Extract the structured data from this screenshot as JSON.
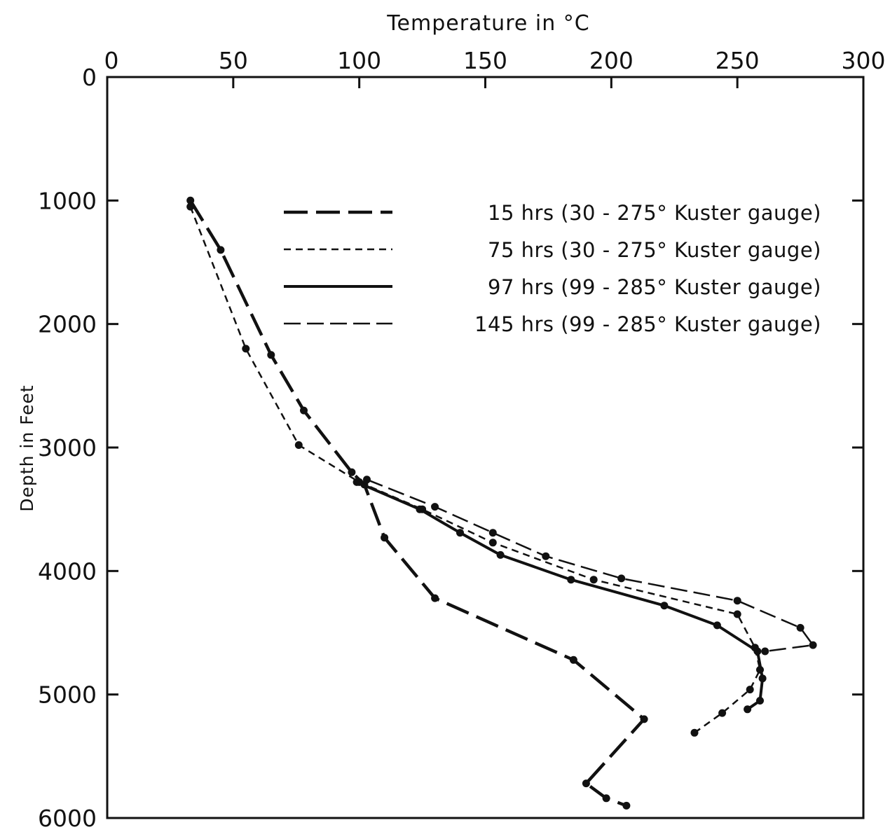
{
  "chart_data": {
    "type": "line",
    "x_axis": {
      "label": "Temperature in °C",
      "position": "top",
      "range": [
        0,
        300
      ],
      "ticks": [
        0,
        50,
        100,
        150,
        200,
        250,
        300
      ],
      "tick_labels": [
        "0",
        "50",
        "100",
        "150",
        "200",
        "250",
        "300"
      ]
    },
    "y_axis": {
      "label": "Depth in Feet",
      "inverted": true,
      "range": [
        0,
        6000
      ],
      "ticks": [
        0,
        1000,
        2000,
        3000,
        4000,
        5000,
        6000
      ],
      "tick_labels": [
        "0",
        "1000",
        "2000",
        "3000",
        "4000",
        "5000",
        "6000"
      ]
    },
    "grid": false,
    "legend_position": "top-right",
    "series": [
      {
        "name": "15 hrs (30 - 275° Kuster gauge)",
        "style": "long-dash-heavy",
        "points": [
          {
            "temp": 33,
            "depth": 1000
          },
          {
            "temp": 45,
            "depth": 1400
          },
          {
            "temp": 65,
            "depth": 2250
          },
          {
            "temp": 78,
            "depth": 2700
          },
          {
            "temp": 97,
            "depth": 3200
          },
          {
            "temp": 102,
            "depth": 3300
          },
          {
            "temp": 110,
            "depth": 3730
          },
          {
            "temp": 130,
            "depth": 4220
          },
          {
            "temp": 185,
            "depth": 4720
          },
          {
            "temp": 213,
            "depth": 5200
          },
          {
            "temp": 190,
            "depth": 5720
          },
          {
            "temp": 198,
            "depth": 5840
          },
          {
            "temp": 206,
            "depth": 5900
          }
        ]
      },
      {
        "name": "75 hrs (30 - 275° Kuster gauge)",
        "style": "short-dash",
        "points": [
          {
            "temp": 33,
            "depth": 1050
          },
          {
            "temp": 55,
            "depth": 2200
          },
          {
            "temp": 76,
            "depth": 2980
          },
          {
            "temp": 100,
            "depth": 3280
          },
          {
            "temp": 125,
            "depth": 3500
          },
          {
            "temp": 153,
            "depth": 3770
          },
          {
            "temp": 193,
            "depth": 4070
          },
          {
            "temp": 250,
            "depth": 4350
          },
          {
            "temp": 257,
            "depth": 4620
          },
          {
            "temp": 259,
            "depth": 4800
          },
          {
            "temp": 255,
            "depth": 4960
          },
          {
            "temp": 244,
            "depth": 5150
          },
          {
            "temp": 233,
            "depth": 5310
          }
        ]
      },
      {
        "name": "97 hrs (99 - 285° Kuster gauge)",
        "style": "solid",
        "points": [
          {
            "temp": 99,
            "depth": 3280
          },
          {
            "temp": 124,
            "depth": 3500
          },
          {
            "temp": 140,
            "depth": 3690
          },
          {
            "temp": 156,
            "depth": 3870
          },
          {
            "temp": 184,
            "depth": 4070
          },
          {
            "temp": 221,
            "depth": 4280
          },
          {
            "temp": 242,
            "depth": 4440
          },
          {
            "temp": 258,
            "depth": 4650
          },
          {
            "temp": 260,
            "depth": 4870
          },
          {
            "temp": 259,
            "depth": 5050
          },
          {
            "temp": 254,
            "depth": 5120
          }
        ]
      },
      {
        "name": "145 hrs (99 - 285° Kuster gauge)",
        "style": "long-dash-thin",
        "points": [
          {
            "temp": 103,
            "depth": 3260
          },
          {
            "temp": 130,
            "depth": 3480
          },
          {
            "temp": 153,
            "depth": 3690
          },
          {
            "temp": 174,
            "depth": 3880
          },
          {
            "temp": 204,
            "depth": 4060
          },
          {
            "temp": 250,
            "depth": 4240
          },
          {
            "temp": 275,
            "depth": 4460
          },
          {
            "temp": 280,
            "depth": 4600
          },
          {
            "temp": 261,
            "depth": 4650
          }
        ]
      }
    ]
  }
}
